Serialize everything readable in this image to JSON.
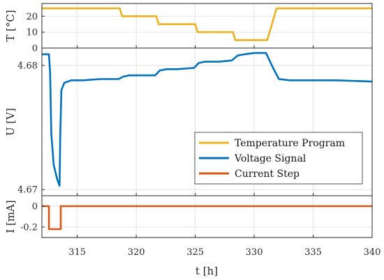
{
  "chart_data": {
    "type": "line",
    "x_range": [
      312,
      340
    ],
    "x_ticks": [
      315,
      320,
      325,
      330,
      335,
      340
    ],
    "x_tick_labels": [
      "315",
      "320",
      "325",
      "330",
      "335",
      "340"
    ],
    "xlabel": "t [h]",
    "grid": true,
    "legend": {
      "placement": "lower-right of middle panel",
      "entries": [
        "Temperature Program",
        "Voltage Signal",
        "Current Step"
      ]
    },
    "colors": {
      "temperature": "#EDB120",
      "voltage": "#0072BD",
      "current": "#D95319",
      "axes": "#262626",
      "grid": "#dcdcdc"
    },
    "panels": [
      {
        "id": "temperature",
        "ylabel": "T [°C]",
        "ylim": [
          0,
          28
        ],
        "y_ticks": [
          0,
          10,
          20
        ],
        "y_tick_labels": [
          "0",
          "10",
          "20"
        ],
        "series": [
          {
            "name": "Temperature Program",
            "x": [
              312,
              318.6,
              318.8,
              321.7,
              321.9,
              325.0,
              325.2,
              328.2,
              328.4,
              331.1,
              331.9,
              340
            ],
            "y": [
              25,
              25,
              20,
              20,
              15,
              15,
              10,
              10,
              5,
              5,
              25,
              25
            ]
          }
        ]
      },
      {
        "id": "voltage",
        "ylabel": "U [V]",
        "ylim": [
          4.6695,
          4.6814
        ],
        "y_ticks": [
          4.67,
          4.68
        ],
        "y_tick_labels": [
          "4.67",
          "4.68"
        ],
        "series": [
          {
            "name": "Voltage Signal",
            "x": [
              312,
              312.6,
              312.7,
              312.8,
              313.0,
              313.3,
              313.5,
              313.55,
              313.65,
              313.9,
              314.5,
              315.5,
              317,
              318.5,
              318.9,
              319.4,
              320.5,
              321.6,
              322.0,
              322.6,
              323.5,
              324.9,
              325.3,
              325.8,
              327,
              328.1,
              328.6,
              329.2,
              330,
              331.0,
              331.6,
              332.1,
              333,
              335,
              337,
              340
            ],
            "y": [
              4.6809,
              4.6809,
              4.6794,
              4.6745,
              4.672,
              4.6708,
              4.6703,
              4.674,
              4.678,
              4.6786,
              4.6788,
              4.6788,
              4.6789,
              4.6789,
              4.6791,
              4.6792,
              4.6792,
              4.6792,
              4.6796,
              4.6797,
              4.6797,
              4.6798,
              4.6802,
              4.6803,
              4.6803,
              4.6804,
              4.6808,
              4.6809,
              4.681,
              4.681,
              4.6798,
              4.6789,
              4.6788,
              4.6788,
              4.6788,
              4.6787
            ]
          }
        ]
      },
      {
        "id": "current",
        "ylabel": "I [mA]",
        "ylim": [
          -0.3,
          0.1
        ],
        "y_ticks": [
          -0.2,
          0
        ],
        "y_tick_labels": [
          "-0.2",
          "0"
        ],
        "series": [
          {
            "name": "Current Step",
            "x": [
              312,
              312.6,
              312.6,
              313.6,
              313.6,
              340
            ],
            "y": [
              0,
              0,
              -0.22,
              -0.22,
              0,
              0
            ]
          }
        ]
      }
    ]
  }
}
